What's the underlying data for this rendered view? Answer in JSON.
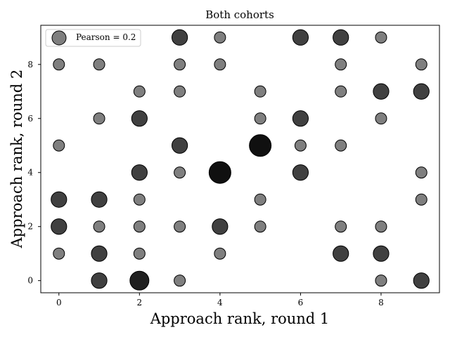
{
  "chart_data": {
    "type": "scatter",
    "title": "Both cohorts",
    "xlabel": "Approach rank, round 1",
    "ylabel": "Approach rank, round 2",
    "xlim": [
      -0.45,
      9.45
    ],
    "ylim": [
      -0.45,
      9.45
    ],
    "xticks": [
      0,
      2,
      4,
      6,
      8
    ],
    "yticks": [
      0,
      2,
      4,
      6,
      8
    ],
    "grid": false,
    "legend": {
      "label": "Pearson = 0.2",
      "placement": "top-left"
    },
    "marker_color": "#000000",
    "note": "Marker size and darkness encode the count of observations at each (x, y) rank pair.",
    "points": [
      {
        "x": 0,
        "y": 1,
        "count": 1
      },
      {
        "x": 0,
        "y": 2,
        "count": 2
      },
      {
        "x": 0,
        "y": 3,
        "count": 2
      },
      {
        "x": 0,
        "y": 5,
        "count": 1
      },
      {
        "x": 0,
        "y": 8,
        "count": 1
      },
      {
        "x": 1,
        "y": 0,
        "count": 2
      },
      {
        "x": 1,
        "y": 1,
        "count": 2
      },
      {
        "x": 1,
        "y": 2,
        "count": 1
      },
      {
        "x": 1,
        "y": 3,
        "count": 2
      },
      {
        "x": 1,
        "y": 6,
        "count": 1
      },
      {
        "x": 1,
        "y": 8,
        "count": 1
      },
      {
        "x": 2,
        "y": 0,
        "count": 3
      },
      {
        "x": 2,
        "y": 1,
        "count": 1
      },
      {
        "x": 2,
        "y": 2,
        "count": 1
      },
      {
        "x": 2,
        "y": 3,
        "count": 1
      },
      {
        "x": 2,
        "y": 4,
        "count": 2
      },
      {
        "x": 2,
        "y": 6,
        "count": 2
      },
      {
        "x": 2,
        "y": 7,
        "count": 1
      },
      {
        "x": 3,
        "y": 0,
        "count": 1
      },
      {
        "x": 3,
        "y": 2,
        "count": 1
      },
      {
        "x": 3,
        "y": 4,
        "count": 1
      },
      {
        "x": 3,
        "y": 5,
        "count": 2
      },
      {
        "x": 3,
        "y": 7,
        "count": 1
      },
      {
        "x": 3,
        "y": 8,
        "count": 1
      },
      {
        "x": 3,
        "y": 9,
        "count": 2
      },
      {
        "x": 4,
        "y": 1,
        "count": 1
      },
      {
        "x": 4,
        "y": 2,
        "count": 2
      },
      {
        "x": 4,
        "y": 4,
        "count": 4
      },
      {
        "x": 4,
        "y": 8,
        "count": 1
      },
      {
        "x": 4,
        "y": 9,
        "count": 1
      },
      {
        "x": 5,
        "y": 2,
        "count": 1
      },
      {
        "x": 5,
        "y": 3,
        "count": 1
      },
      {
        "x": 5,
        "y": 5,
        "count": 4
      },
      {
        "x": 5,
        "y": 6,
        "count": 1
      },
      {
        "x": 5,
        "y": 7,
        "count": 1
      },
      {
        "x": 6,
        "y": 4,
        "count": 2
      },
      {
        "x": 6,
        "y": 5,
        "count": 1
      },
      {
        "x": 6,
        "y": 6,
        "count": 2
      },
      {
        "x": 6,
        "y": 9,
        "count": 2
      },
      {
        "x": 7,
        "y": 1,
        "count": 2
      },
      {
        "x": 7,
        "y": 2,
        "count": 1
      },
      {
        "x": 7,
        "y": 5,
        "count": 1
      },
      {
        "x": 7,
        "y": 7,
        "count": 1
      },
      {
        "x": 7,
        "y": 8,
        "count": 1
      },
      {
        "x": 7,
        "y": 9,
        "count": 2
      },
      {
        "x": 8,
        "y": 0,
        "count": 1
      },
      {
        "x": 8,
        "y": 1,
        "count": 2
      },
      {
        "x": 8,
        "y": 2,
        "count": 1
      },
      {
        "x": 8,
        "y": 6,
        "count": 1
      },
      {
        "x": 8,
        "y": 7,
        "count": 2
      },
      {
        "x": 8,
        "y": 9,
        "count": 1
      },
      {
        "x": 9,
        "y": 0,
        "count": 2
      },
      {
        "x": 9,
        "y": 3,
        "count": 1
      },
      {
        "x": 9,
        "y": 4,
        "count": 1
      },
      {
        "x": 9,
        "y": 7,
        "count": 2
      },
      {
        "x": 9,
        "y": 8,
        "count": 1
      }
    ]
  }
}
